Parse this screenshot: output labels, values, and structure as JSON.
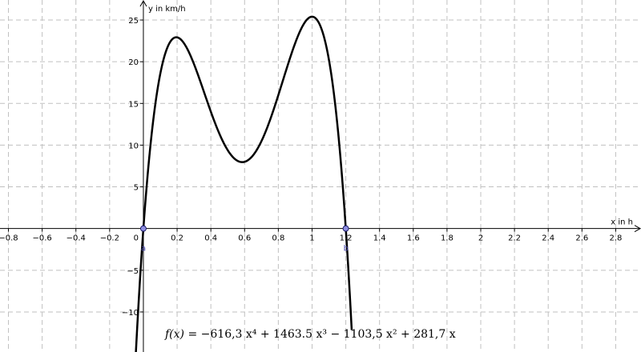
{
  "chart_data": {
    "type": "line",
    "title": "",
    "xlabel": "x in h",
    "ylabel": "y in km/h",
    "xlim": [
      -0.85,
      2.95
    ],
    "ylim": [
      -14.8,
      27.4
    ],
    "grid": true,
    "x_ticks": [
      -0.8,
      -0.6,
      -0.4,
      -0.2,
      0.2,
      0.4,
      0.6,
      0.8,
      1,
      1.2,
      1.4,
      1.6,
      1.8,
      2,
      2.2,
      2.4,
      2.6,
      2.8
    ],
    "x_tick_labels": [
      "−0.8",
      "−0.6",
      "−0.4",
      "−0.2",
      "0.2",
      "0.4",
      "0.6",
      "0.8",
      "1",
      "1.2",
      "1.4",
      "1.6",
      "1.8",
      "2",
      "2.2",
      "2.4",
      "2.6",
      "2.8"
    ],
    "y_ticks": [
      -10,
      -5,
      5,
      10,
      15,
      20,
      25
    ],
    "y_tick_labels": [
      "−10",
      "−5",
      "5",
      "10",
      "15",
      "20",
      "25"
    ],
    "origin_label": "0",
    "function": {
      "coefficients": {
        "x4": -616.3,
        "x3": 1463.5,
        "x2": -1103.5,
        "x1": 281.7
      },
      "domain": [
        -0.045,
        1.235
      ],
      "color": "#000000"
    },
    "points": [
      {
        "label": "a",
        "x": 0,
        "y": 0,
        "color": "#4d4db3"
      },
      {
        "label": "b",
        "x": 1.2,
        "y": 0,
        "color": "#4d4db3"
      }
    ],
    "formula": {
      "name": "f(x)",
      "text": "=  −616,3 x⁴ + 1463.5 x³ − 1103,5 x² + 281,7 x"
    }
  }
}
